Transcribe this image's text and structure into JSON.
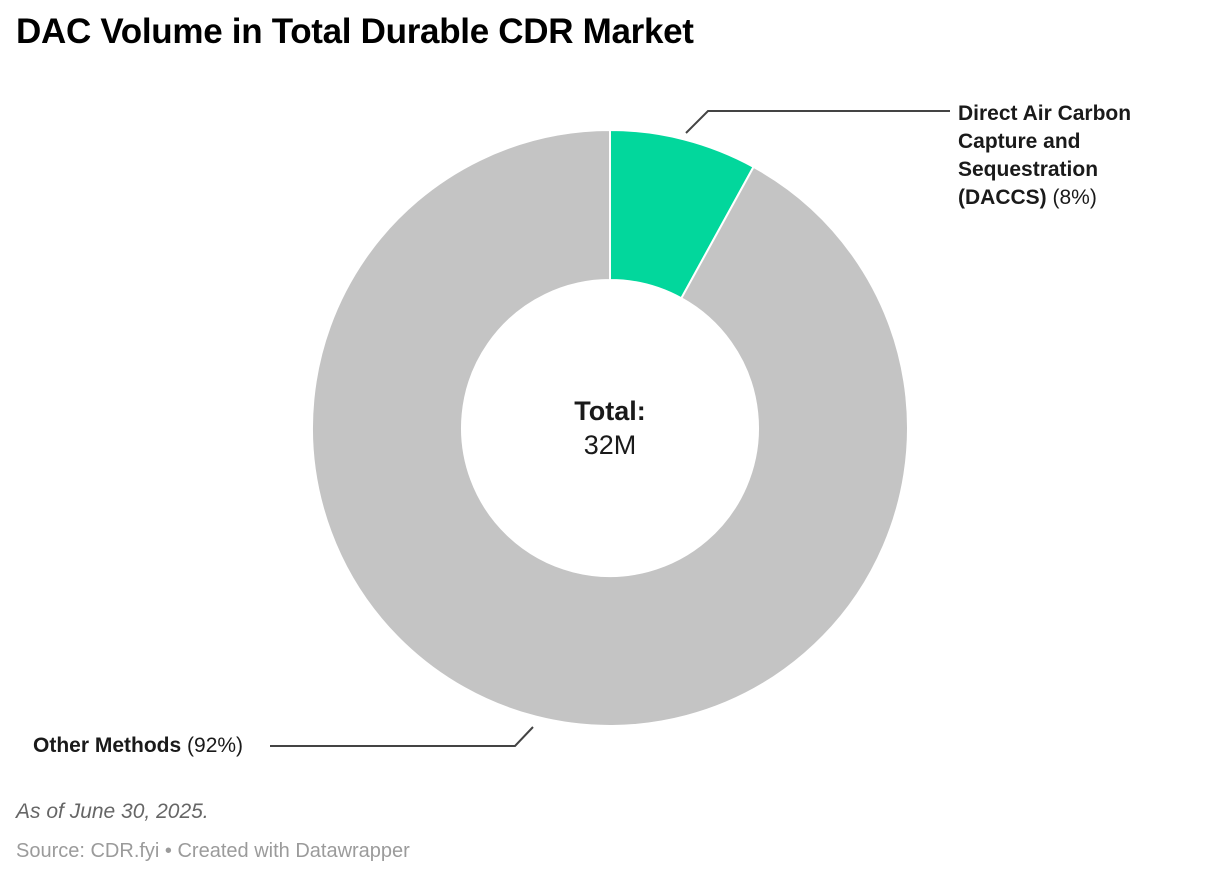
{
  "title": "DAC Volume in Total Durable CDR Market",
  "chart_data": {
    "type": "pie",
    "subtype": "donut",
    "title": "DAC Volume in Total Durable CDR Market",
    "categories": [
      "Direct Air Carbon Capture and Sequestration (DACCS)",
      "Other Methods"
    ],
    "values": [
      8,
      92
    ],
    "unit": "%",
    "colors": [
      "#02d79c",
      "#c4c4c4"
    ],
    "start_angle_deg": 0,
    "direction": "clockwise",
    "center_label": {
      "title": "Total:",
      "value": "32M"
    },
    "legend_position": "callout-labels"
  },
  "labels": {
    "daccs": {
      "name_lines": [
        "Direct Air Carbon",
        "Capture and",
        "Sequestration",
        "(DACCS)"
      ],
      "pct": "(8%)"
    },
    "other": {
      "name": "Other Methods",
      "pct": "(92%)"
    }
  },
  "center": {
    "title": "Total:",
    "value": "32M"
  },
  "footer": {
    "note": "As of June 30, 2025.",
    "source": "Source: CDR.fyi • Created with Datawrapper"
  },
  "style": {
    "slice_separator_color": "#ffffff",
    "connector_color": "#444444",
    "text_color": "#1a1a1a",
    "note_color": "#666666",
    "source_color": "#9b9b9b"
  }
}
